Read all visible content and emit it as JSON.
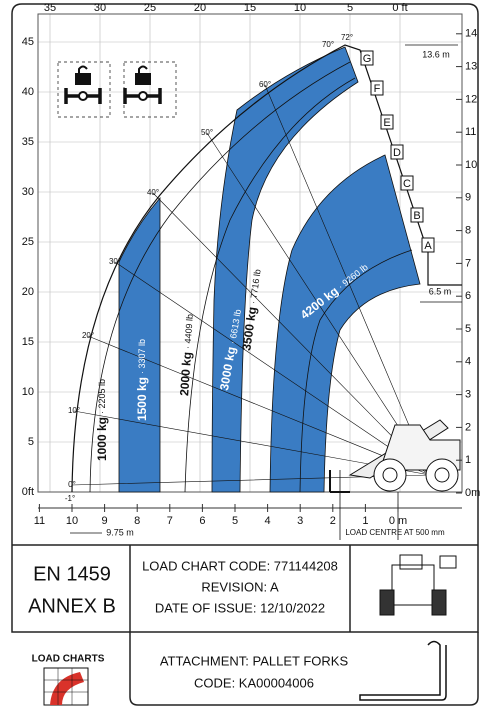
{
  "top_axis": {
    "ticks": [
      35,
      30,
      25,
      20,
      15,
      10,
      5,
      {
        "value": 0,
        "label": "0 ft"
      }
    ]
  },
  "left_axis": {
    "ticks": [
      45,
      40,
      35,
      30,
      25,
      20,
      15,
      10,
      5,
      {
        "value": 0,
        "label": "0ft"
      }
    ]
  },
  "right_axis": {
    "ticks": [
      14,
      13,
      12,
      11,
      10,
      9,
      8,
      7,
      6,
      5,
      4,
      3,
      2,
      1,
      {
        "value": 0,
        "label": "0m"
      }
    ]
  },
  "bottom_axis": {
    "ticks": [
      11,
      10,
      9,
      8,
      7,
      6,
      5,
      4,
      3,
      2,
      1,
      {
        "value": 0,
        "label": "0 m"
      }
    ]
  },
  "dimensions": {
    "max_height": "13.6 m",
    "reach_at_max_height": "6.5 m",
    "max_reach": "9.75 m",
    "load_centre": "LOAD CENTRE AT 500 mm"
  },
  "angles": [
    "72°",
    "70°",
    "60°",
    "50°",
    "40°",
    "30°",
    "20°",
    "10°",
    "0°",
    "-1°"
  ],
  "extensions": [
    "G",
    "F",
    "E",
    "D",
    "C",
    "B",
    "A"
  ],
  "loads": [
    {
      "kg": "1000 kg",
      "lb": "· 2205 lb"
    },
    {
      "kg": "1500 kg",
      "lb": "· 3307 lb"
    },
    {
      "kg": "2000 kg",
      "lb": "· 4409 lb"
    },
    {
      "kg": "3000 kg",
      "lb": "· 6613 lb"
    },
    {
      "kg": "3500 kg",
      "lb": "· 7716 lb"
    },
    {
      "kg": "4200 kg",
      "lb": "· 9260 lb"
    }
  ],
  "info": {
    "standard": [
      "EN 1459",
      "ANNEX B"
    ],
    "chart_code": "LOAD CHART CODE: 771144208",
    "revision": "REVISION: A",
    "date": "DATE OF ISSUE: 12/10/2022"
  },
  "logo": "LOAD CHARTS",
  "attachment": {
    "name": "ATTACHMENT: PALLET FORKS",
    "code": "CODE: KA00004006"
  }
}
